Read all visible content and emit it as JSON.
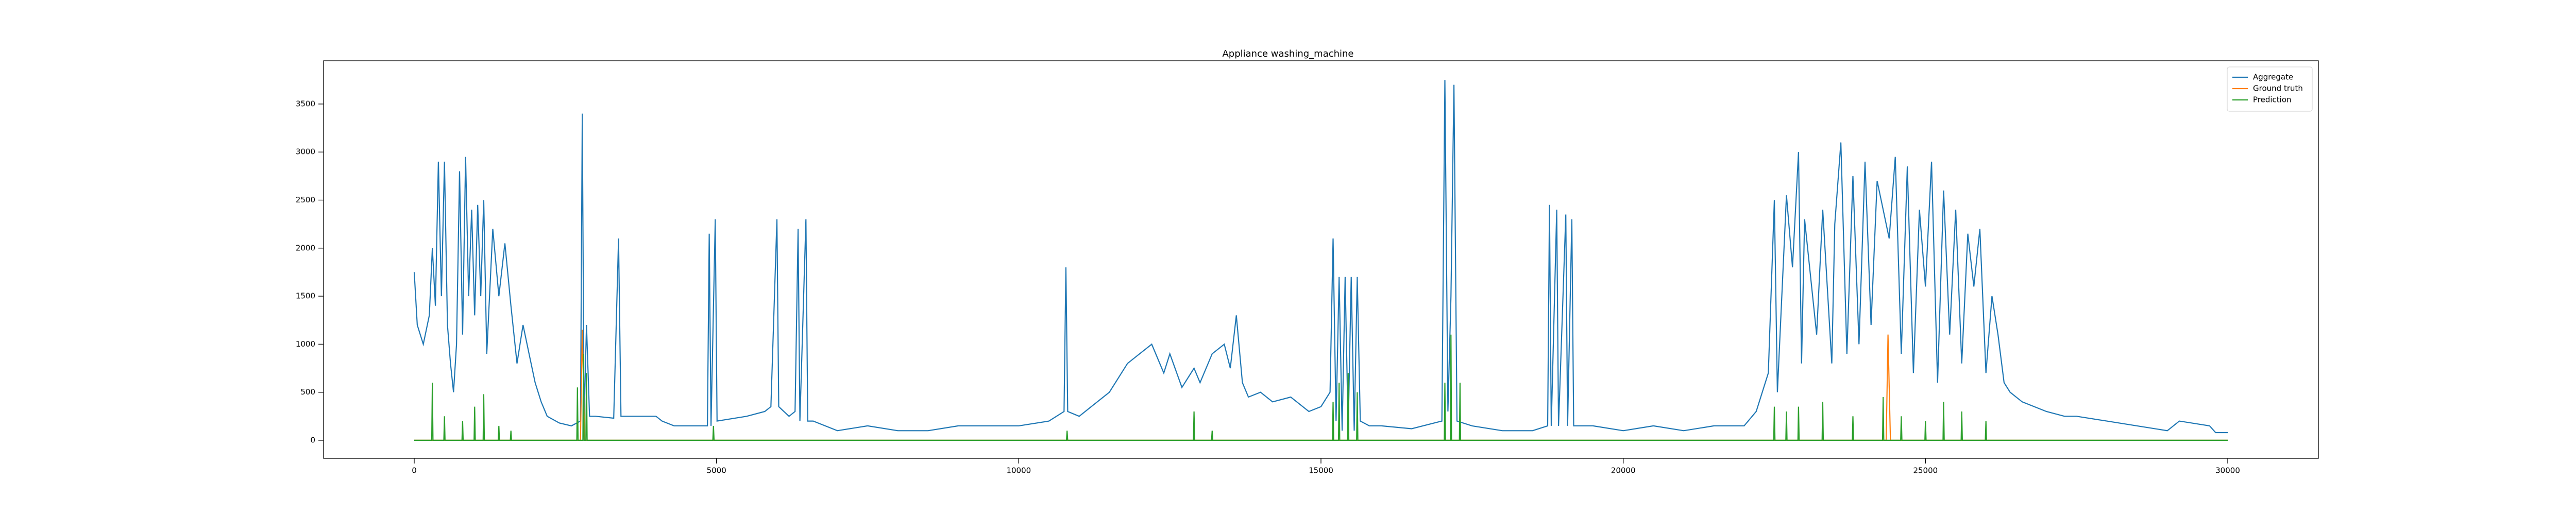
{
  "chart_data": {
    "type": "line",
    "title": "Appliance washing_machine",
    "xlim": [
      -1500,
      31500
    ],
    "ylim": [
      -188,
      3950
    ],
    "xticks": [
      0,
      5000,
      10000,
      15000,
      20000,
      25000,
      30000
    ],
    "yticks": [
      0,
      500,
      1000,
      1500,
      2000,
      2500,
      3000,
      3500
    ],
    "legend": "upper right",
    "series": [
      {
        "name": "Aggregate",
        "color": "#1f77b4",
        "x": [
          0,
          50,
          150,
          250,
          300,
          350,
          400,
          450,
          500,
          550,
          600,
          650,
          700,
          750,
          800,
          850,
          900,
          950,
          1000,
          1050,
          1100,
          1150,
          1200,
          1300,
          1400,
          1500,
          1600,
          1700,
          1800,
          1900,
          2000,
          2100,
          2200,
          2400,
          2600,
          2750,
          2780,
          2810,
          2850,
          2900,
          3000,
          3300,
          3380,
          3420,
          3600,
          4000,
          4100,
          4300,
          4600,
          4850,
          4880,
          4910,
          4980,
          5010,
          5500,
          5800,
          5900,
          6000,
          6030,
          6200,
          6300,
          6350,
          6380,
          6480,
          6510,
          6600,
          7000,
          7500,
          8000,
          8500,
          9000,
          9500,
          10000,
          10500,
          10750,
          10780,
          10810,
          11000,
          11200,
          11500,
          11800,
          12000,
          12200,
          12400,
          12500,
          12700,
          12900,
          13000,
          13200,
          13400,
          13500,
          13600,
          13700,
          13800,
          14000,
          14200,
          14500,
          14800,
          15000,
          15150,
          15200,
          15250,
          15300,
          15350,
          15400,
          15450,
          15500,
          15550,
          15600,
          15650,
          15800,
          16000,
          16500,
          17000,
          17050,
          17100,
          17150,
          17200,
          17250,
          17500,
          18000,
          18500,
          18750,
          18780,
          18810,
          18900,
          18930,
          19050,
          19080,
          19150,
          19180,
          19500,
          20000,
          20500,
          21000,
          21500,
          22000,
          22200,
          22400,
          22500,
          22550,
          22700,
          22800,
          22900,
          22950,
          23000,
          23200,
          23300,
          23450,
          23500,
          23600,
          23700,
          23800,
          23900,
          24000,
          24100,
          24200,
          24400,
          24500,
          24600,
          24700,
          24800,
          24900,
          25000,
          25100,
          25200,
          25300,
          25400,
          25500,
          25600,
          25700,
          25800,
          25900,
          26000,
          26100,
          26200,
          26300,
          26400,
          26600,
          26800,
          27000,
          27300,
          27500,
          28000,
          28500,
          29000,
          29200,
          29700,
          29800,
          30000
        ],
        "values": [
          1750,
          1200,
          1000,
          1300,
          2000,
          1400,
          2900,
          1500,
          2900,
          1200,
          800,
          500,
          1000,
          2800,
          1100,
          2950,
          1500,
          2400,
          1300,
          2450,
          1500,
          2500,
          900,
          2200,
          1500,
          2050,
          1400,
          800,
          1200,
          900,
          600,
          400,
          250,
          180,
          150,
          200,
          3400,
          200,
          1200,
          250,
          250,
          230,
          2100,
          250,
          250,
          250,
          200,
          150,
          150,
          150,
          2150,
          150,
          2300,
          200,
          250,
          300,
          350,
          2300,
          350,
          250,
          300,
          2200,
          200,
          2300,
          200,
          200,
          100,
          150,
          100,
          100,
          150,
          150,
          150,
          200,
          300,
          1800,
          300,
          250,
          350,
          500,
          800,
          900,
          1000,
          700,
          900,
          550,
          750,
          600,
          900,
          1000,
          750,
          1300,
          600,
          450,
          500,
          400,
          450,
          300,
          350,
          500,
          2100,
          200,
          1700,
          100,
          1700,
          100,
          1700,
          100,
          1700,
          200,
          150,
          150,
          120,
          200,
          3750,
          300,
          1500,
          3700,
          200,
          150,
          100,
          100,
          150,
          2450,
          150,
          2400,
          150,
          2350,
          150,
          2300,
          150,
          150,
          100,
          150,
          100,
          150,
          150,
          300,
          700,
          2500,
          500,
          2550,
          1800,
          3000,
          800,
          2300,
          1100,
          2400,
          800,
          2250,
          3100,
          900,
          2750,
          1000,
          2900,
          1200,
          2700,
          2100,
          2950,
          900,
          2850,
          700,
          2400,
          1600,
          2900,
          600,
          2600,
          1100,
          2400,
          800,
          2150,
          1600,
          2200,
          700,
          1500,
          1100,
          600,
          500,
          400,
          350,
          300,
          250,
          250,
          200,
          150,
          100,
          200,
          150,
          80,
          80
        ]
      },
      {
        "name": "Ground truth",
        "color": "#ff7f0e",
        "x": [
          0,
          2750,
          2780,
          2820,
          24350,
          24380,
          24420,
          30000
        ],
        "values": [
          0,
          0,
          1150,
          0,
          0,
          1100,
          0,
          0
        ]
      },
      {
        "name": "Prediction",
        "color": "#2ca02c",
        "x": [
          0,
          290,
          300,
          310,
          490,
          500,
          510,
          790,
          800,
          810,
          990,
          1000,
          1010,
          1140,
          1150,
          1160,
          1390,
          1400,
          1410,
          1590,
          1600,
          1610,
          2690,
          2700,
          2710,
          2790,
          2800,
          2810,
          2840,
          2850,
          2860,
          4940,
          4950,
          4960,
          10790,
          10800,
          10810,
          12890,
          12900,
          12910,
          13190,
          13200,
          13210,
          15190,
          15200,
          15210,
          15290,
          15300,
          15310,
          15440,
          15450,
          15460,
          15590,
          15600,
          15610,
          17040,
          17050,
          17060,
          17140,
          17150,
          17160,
          17290,
          17300,
          17310,
          22490,
          22500,
          22510,
          22690,
          22700,
          22710,
          22890,
          22900,
          22910,
          23290,
          23300,
          23310,
          23790,
          23800,
          23810,
          24290,
          24300,
          24310,
          24590,
          24600,
          24610,
          24990,
          25000,
          25010,
          25290,
          25300,
          25310,
          25590,
          25600,
          25610,
          25990,
          26000,
          26010,
          30000
        ],
        "values": [
          0,
          0,
          600,
          0,
          0,
          250,
          0,
          0,
          200,
          0,
          0,
          350,
          0,
          0,
          480,
          0,
          0,
          150,
          0,
          0,
          100,
          0,
          0,
          550,
          0,
          0,
          900,
          0,
          0,
          700,
          0,
          0,
          150,
          0,
          0,
          100,
          0,
          0,
          300,
          0,
          0,
          100,
          0,
          0,
          400,
          0,
          0,
          600,
          0,
          0,
          700,
          0,
          0,
          500,
          0,
          0,
          600,
          0,
          0,
          1100,
          0,
          0,
          600,
          0,
          0,
          350,
          0,
          0,
          300,
          0,
          0,
          350,
          0,
          0,
          400,
          0,
          0,
          250,
          0,
          0,
          450,
          0,
          0,
          250,
          0,
          0,
          200,
          0,
          0,
          400,
          0,
          0,
          300,
          0,
          0,
          200,
          0,
          0
        ]
      }
    ]
  }
}
